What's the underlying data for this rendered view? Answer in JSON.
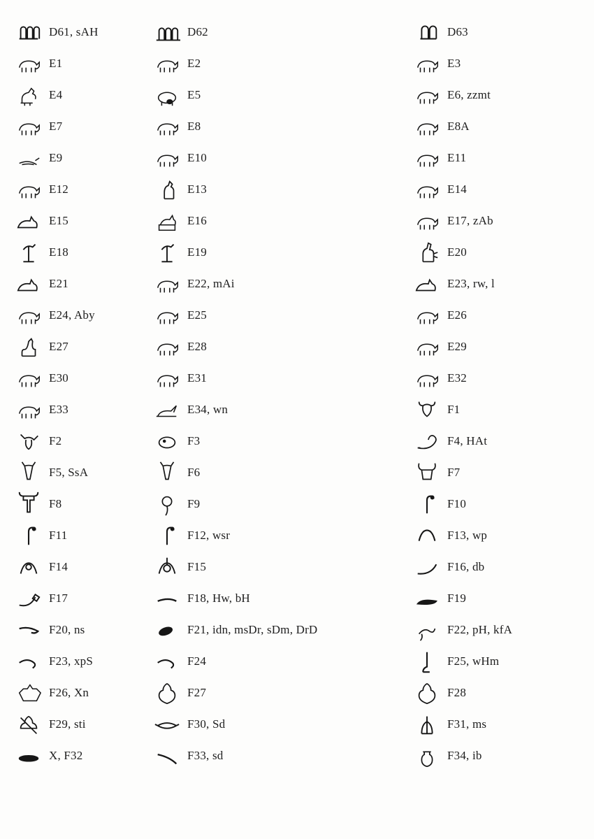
{
  "stroke": "#161616",
  "fill": "#161616",
  "background": "#fdfdfc",
  "font_family": "Georgia, Times New Roman, serif",
  "label_fontsize": 17,
  "columns": [
    "col-a",
    "col-b",
    "col-c"
  ],
  "rows": [
    [
      {
        "code": "D61",
        "translit": "sAH",
        "glyph": "toes"
      },
      {
        "code": "D62",
        "translit": null,
        "glyph": "toes-line"
      },
      {
        "code": "D63",
        "translit": null,
        "glyph": "two-toes"
      }
    ],
    [
      {
        "code": "E1",
        "translit": null,
        "glyph": "bull"
      },
      {
        "code": "E2",
        "translit": null,
        "glyph": "bull-charge"
      },
      {
        "code": "E3",
        "translit": null,
        "glyph": "calf"
      }
    ],
    [
      {
        "code": "E4",
        "translit": null,
        "glyph": "hesat"
      },
      {
        "code": "E5",
        "translit": null,
        "glyph": "cow-suckle"
      },
      {
        "code": "E6",
        "translit": "zzmt",
        "glyph": "horse"
      }
    ],
    [
      {
        "code": "E7",
        "translit": null,
        "glyph": "donkey"
      },
      {
        "code": "E8",
        "translit": null,
        "glyph": "kid"
      },
      {
        "code": "E8A",
        "translit": null,
        "glyph": "kid-jump"
      }
    ],
    [
      {
        "code": "E9",
        "translit": null,
        "glyph": "newborn"
      },
      {
        "code": "E10",
        "translit": null,
        "glyph": "ram"
      },
      {
        "code": "E11",
        "translit": null,
        "glyph": "ram2"
      }
    ],
    [
      {
        "code": "E12",
        "translit": null,
        "glyph": "pig"
      },
      {
        "code": "E13",
        "translit": null,
        "glyph": "cat"
      },
      {
        "code": "E14",
        "translit": null,
        "glyph": "dog"
      }
    ],
    [
      {
        "code": "E15",
        "translit": null,
        "glyph": "lying-dog"
      },
      {
        "code": "E16",
        "translit": null,
        "glyph": "anubis-shrine"
      },
      {
        "code": "E17",
        "translit": "zAb",
        "glyph": "jackal"
      }
    ],
    [
      {
        "code": "E18",
        "translit": null,
        "glyph": "wolf-standard"
      },
      {
        "code": "E19",
        "translit": null,
        "glyph": "wolf-standard2"
      },
      {
        "code": "E20",
        "translit": null,
        "glyph": "set"
      }
    ],
    [
      {
        "code": "E21",
        "translit": null,
        "glyph": "set-lying"
      },
      {
        "code": "E22",
        "translit": "mAi",
        "glyph": "lion"
      },
      {
        "code": "E23",
        "translit": "rw, l",
        "glyph": "lion-lying"
      }
    ],
    [
      {
        "code": "E24",
        "translit": "Aby",
        "glyph": "panther"
      },
      {
        "code": "E25",
        "translit": null,
        "glyph": "hippo"
      },
      {
        "code": "E26",
        "translit": null,
        "glyph": "elephant"
      }
    ],
    [
      {
        "code": "E27",
        "translit": null,
        "glyph": "giraffe"
      },
      {
        "code": "E28",
        "translit": null,
        "glyph": "oryx"
      },
      {
        "code": "E29",
        "translit": null,
        "glyph": "gazelle"
      }
    ],
    [
      {
        "code": "E30",
        "translit": null,
        "glyph": "ibex"
      },
      {
        "code": "E31",
        "translit": null,
        "glyph": "goat"
      },
      {
        "code": "E32",
        "translit": null,
        "glyph": "baboon"
      }
    ],
    [
      {
        "code": "E33",
        "translit": null,
        "glyph": "monkey"
      },
      {
        "code": "E34",
        "translit": "wn",
        "glyph": "hare"
      },
      {
        "code": "F1",
        "translit": null,
        "glyph": "ox-head"
      }
    ],
    [
      {
        "code": "F2",
        "translit": null,
        "glyph": "ox-head-charge"
      },
      {
        "code": "F3",
        "translit": null,
        "glyph": "hippo-head"
      },
      {
        "code": "F4",
        "translit": "HAt",
        "glyph": "lion-fore"
      }
    ],
    [
      {
        "code": "F5",
        "translit": "SsA",
        "glyph": "hartebeest-head"
      },
      {
        "code": "F6",
        "translit": null,
        "glyph": "hartebeest-fore"
      },
      {
        "code": "F7",
        "translit": null,
        "glyph": "ram-head"
      }
    ],
    [
      {
        "code": "F8",
        "translit": null,
        "glyph": "ram-fore"
      },
      {
        "code": "F9",
        "translit": null,
        "glyph": "leopard-head"
      },
      {
        "code": "F10",
        "translit": null,
        "glyph": "head-neck"
      }
    ],
    [
      {
        "code": "F11",
        "translit": null,
        "glyph": "head-neck2"
      },
      {
        "code": "F12",
        "translit": "wsr",
        "glyph": "head-neck3"
      },
      {
        "code": "F13",
        "translit": "wp",
        "glyph": "horns"
      }
    ],
    [
      {
        "code": "F14",
        "translit": null,
        "glyph": "horns-sun"
      },
      {
        "code": "F15",
        "translit": null,
        "glyph": "horns-feather"
      },
      {
        "code": "F16",
        "translit": "db",
        "glyph": "horn"
      }
    ],
    [
      {
        "code": "F17",
        "translit": null,
        "glyph": "horn-jar"
      },
      {
        "code": "F18",
        "translit": "Hw, bH",
        "glyph": "tusk"
      },
      {
        "code": "F19",
        "translit": null,
        "glyph": "jaw"
      }
    ],
    [
      {
        "code": "F20",
        "translit": "ns",
        "glyph": "tongue"
      },
      {
        "code": "F21",
        "translit": "idn, msDr, sDm, DrD",
        "glyph": "ear"
      },
      {
        "code": "F22",
        "translit": "pH, kfA",
        "glyph": "hind"
      }
    ],
    [
      {
        "code": "F23",
        "translit": "xpS",
        "glyph": "foreleg"
      },
      {
        "code": "F24",
        "translit": null,
        "glyph": "foreleg-rev"
      },
      {
        "code": "F25",
        "translit": "wHm",
        "glyph": "leg"
      }
    ],
    [
      {
        "code": "F26",
        "translit": "Xn",
        "glyph": "goat-skin"
      },
      {
        "code": "F27",
        "translit": null,
        "glyph": "cow-skin"
      },
      {
        "code": "F28",
        "translit": null,
        "glyph": "cow-skin2"
      }
    ],
    [
      {
        "code": "F29",
        "translit": "sti",
        "glyph": "cow-skin-arrow"
      },
      {
        "code": "F30",
        "translit": "Sd",
        "glyph": "water-skin"
      },
      {
        "code": "F31",
        "translit": "ms",
        "glyph": "three-skins"
      }
    ],
    [
      {
        "code": "X",
        "translit": "F32",
        "glyph": "belly"
      },
      {
        "code": "F33",
        "translit": "sd",
        "glyph": "tail"
      },
      {
        "code": "F34",
        "translit": "ib",
        "glyph": "heart"
      }
    ]
  ]
}
